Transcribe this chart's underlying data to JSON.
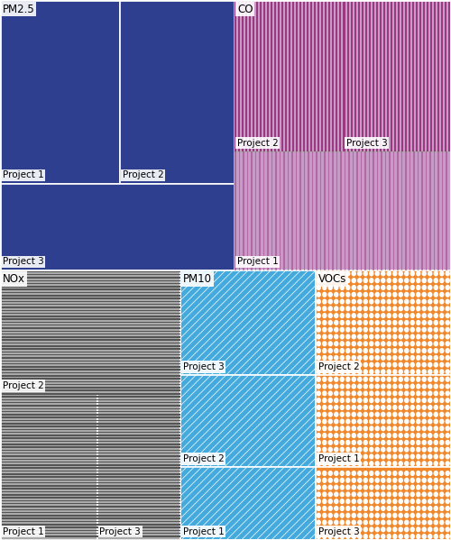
{
  "colors": {
    "PM2.5": "#2e3f8f",
    "CO_dark": "#9b3880",
    "CO_light": "#c89ac8",
    "NOx": "#888888",
    "PM10": "#44aadd",
    "VOCs": "#f0872a"
  },
  "bg_color": "#ffffff",
  "label_fontsize": 7.5,
  "section_fontsize": 8.5,
  "rects": {
    "PM2.5_P1": [
      0.0,
      0.66,
      0.265,
      1.0
    ],
    "PM2.5_P2": [
      0.265,
      0.66,
      0.52,
      1.0
    ],
    "PM2.5_P3": [
      0.0,
      0.5,
      0.52,
      0.66
    ],
    "CO_P2": [
      0.52,
      0.72,
      0.762,
      1.0
    ],
    "CO_P3": [
      0.762,
      0.72,
      1.0,
      1.0
    ],
    "CO_P1": [
      0.52,
      0.5,
      1.0,
      0.72
    ],
    "NOx_P2": [
      0.0,
      0.27,
      0.4,
      0.5
    ],
    "NOx_P1": [
      0.0,
      0.0,
      0.215,
      0.27
    ],
    "NOx_P3": [
      0.215,
      0.0,
      0.4,
      0.27
    ],
    "PM10_P3": [
      0.4,
      0.305,
      0.7,
      0.5
    ],
    "PM10_P2": [
      0.4,
      0.135,
      0.7,
      0.305
    ],
    "PM10_P1": [
      0.4,
      0.0,
      0.7,
      0.135
    ],
    "VOCs_P2": [
      0.7,
      0.305,
      1.0,
      0.5
    ],
    "VOCs_P1": [
      0.7,
      0.135,
      1.0,
      0.305
    ],
    "VOCs_P3": [
      0.7,
      0.0,
      1.0,
      0.135
    ]
  },
  "section_labels": {
    "PM2.5": [
      0.0,
      0.5,
      0.52,
      1.0
    ],
    "CO": [
      0.52,
      0.5,
      1.0,
      1.0
    ],
    "NOx": [
      0.0,
      0.0,
      0.4,
      0.5
    ],
    "PM10": [
      0.4,
      0.0,
      0.7,
      0.5
    ],
    "VOCs": [
      0.7,
      0.0,
      1.0,
      0.5
    ]
  }
}
